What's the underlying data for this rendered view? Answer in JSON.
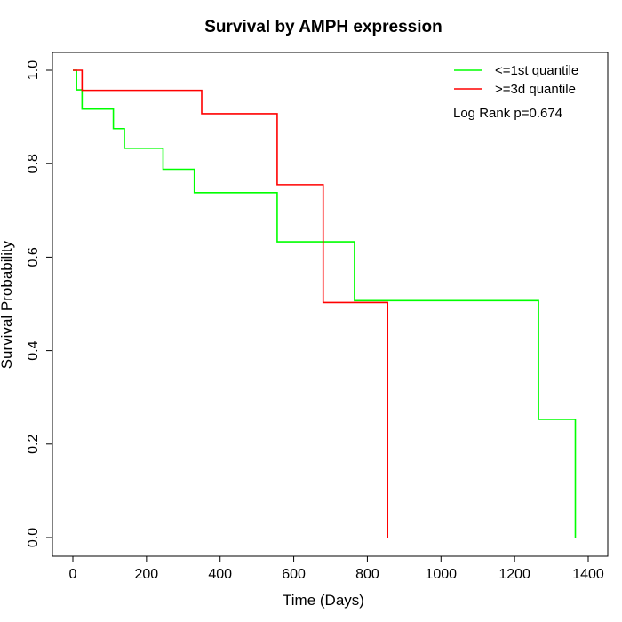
{
  "chart_data": {
    "type": "line",
    "title": "Survival by AMPH expression",
    "xlabel": "Time (Days)",
    "ylabel": "Survival Probability",
    "xlim": [
      0,
      1400
    ],
    "ylim": [
      0,
      1
    ],
    "xticks": [
      "0",
      "200",
      "400",
      "600",
      "800",
      "1000",
      "1200",
      "1400"
    ],
    "yticks": [
      "0.0",
      "0.2",
      "0.4",
      "0.6",
      "0.8",
      "1.0"
    ],
    "grid": false,
    "legend_position": "top-right",
    "annotation": "Log Rank p=0.674",
    "series": [
      {
        "name": "<=1st quantile",
        "color": "#00ff00",
        "step": true,
        "x": [
          0,
          10,
          25,
          110,
          140,
          245,
          330,
          555,
          765,
          1265,
          1365
        ],
        "y": [
          1.0,
          0.958,
          0.917,
          0.875,
          0.833,
          0.788,
          0.738,
          0.633,
          0.507,
          0.253,
          0.0
        ]
      },
      {
        "name": ">=3d quantile",
        "color": "#ff0000",
        "step": true,
        "x": [
          0,
          25,
          350,
          555,
          680,
          855
        ],
        "y": [
          1.0,
          0.957,
          0.907,
          0.755,
          0.503,
          0.0
        ]
      }
    ]
  }
}
